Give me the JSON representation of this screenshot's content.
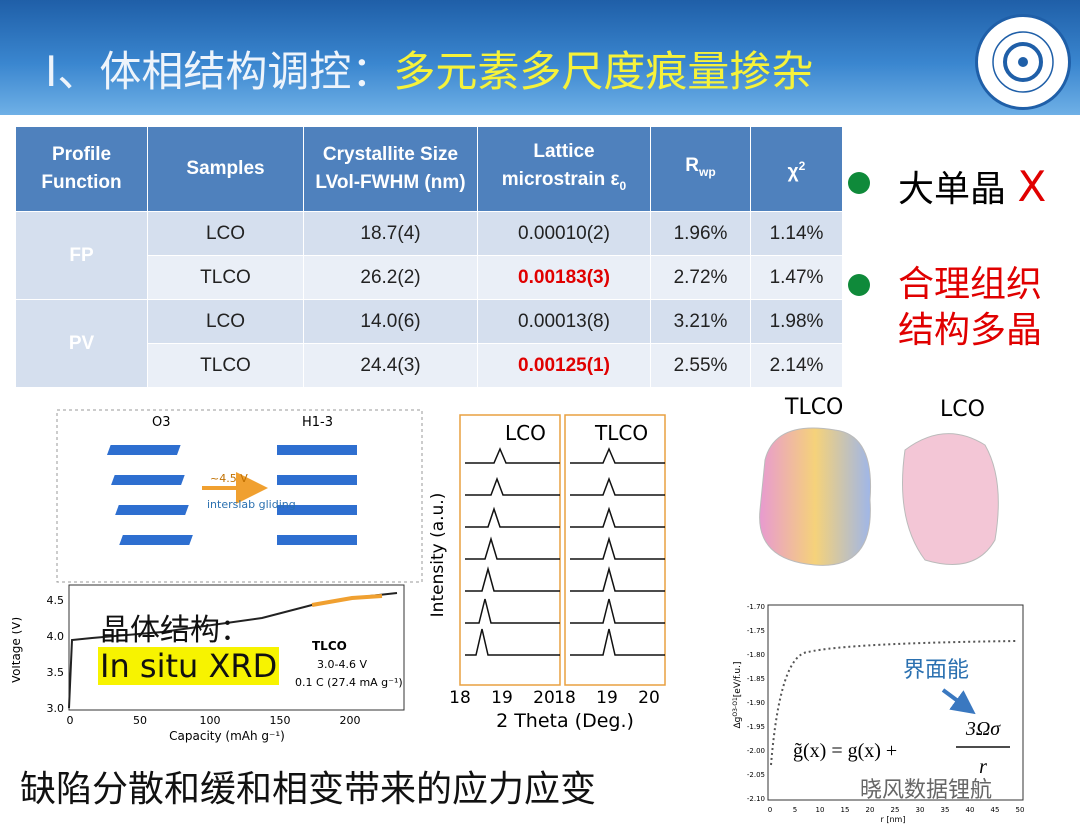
{
  "header": {
    "title_part1": "I、体相结构调控：",
    "title_part2": "多元素多尺度痕量掺杂"
  },
  "table": {
    "headers": [
      {
        "main": "Profile Function"
      },
      {
        "main": "Samples"
      },
      {
        "main": "Crystallite Size LVol-FWHM (nm)"
      },
      {
        "main": "Lattice microstrain ε",
        "sub": "0"
      },
      {
        "main": "R",
        "sub": "wp"
      },
      {
        "main": "χ",
        "sup": "2"
      }
    ],
    "groups": [
      {
        "name": "FP",
        "rows": [
          [
            "LCO",
            "18.7(4)",
            "0.00010(2)",
            "1.96%",
            "1.14%"
          ],
          [
            "TLCO",
            "26.2(2)",
            "0.00183(3)",
            "2.72%",
            "1.47%"
          ]
        ]
      },
      {
        "name": "PV",
        "rows": [
          [
            "LCO",
            "14.0(6)",
            "0.00013(8)",
            "3.21%",
            "1.98%"
          ],
          [
            "TLCO",
            "24.4(3)",
            "0.00125(1)",
            "2.55%",
            "2.14%"
          ]
        ]
      }
    ]
  },
  "bullets": [
    {
      "text": "大单晶",
      "mark": "X"
    },
    {
      "text": "合理组织结构多晶"
    }
  ],
  "figure_structure": {
    "left_label": "O3",
    "right_label": "H1-3",
    "arrow_label": "~4.5 V",
    "arrow_note": "interslab gliding",
    "y_label": "Voltage (V)",
    "x_label": "Capacity (mAh g⁻¹)",
    "yticks": [
      "4.5",
      "4.0",
      "3.5",
      "3.0"
    ],
    "xticks": [
      "0",
      "50",
      "100",
      "150",
      "200"
    ],
    "sample": "TLCO",
    "range": "3.0-4.6 V",
    "rate": "0.1 C (27.4 mA g⁻¹)",
    "overlay_title": "晶体结构：",
    "overlay_highlight": "In situ XRD"
  },
  "figure_xrd": {
    "left_title": "LCO",
    "right_title": "TLCO",
    "y_label": "Intensity (a.u.)",
    "x_label": "2 Theta (Deg.)",
    "xticks": [
      "18",
      "19",
      "20",
      "18",
      "19",
      "20"
    ]
  },
  "figure_particles": {
    "left_label": "TLCO",
    "right_label": "LCO"
  },
  "figure_energy": {
    "y_label": "Δg",
    "y_label_sup": "O3-O1",
    "y_label_unit": "[eV/f.u.]",
    "x_label": "r [nm]",
    "yticks": [
      "-1.70",
      "-1.75",
      "-1.80",
      "-1.85",
      "-1.90",
      "-1.95",
      "-2.00",
      "-2.05",
      "-2.10"
    ],
    "xticks": [
      "0",
      "5",
      "10",
      "15",
      "20",
      "25",
      "30",
      "35",
      "40",
      "45",
      "50"
    ],
    "annotation": "界面能",
    "formula_lhs": "g̃(x) = g(x) +",
    "formula_num": "3Ωσ",
    "formula_den": "r"
  },
  "caption": "缺陷分散和缓和相变带来的应力应变",
  "watermark": "晓风数据锂航"
}
